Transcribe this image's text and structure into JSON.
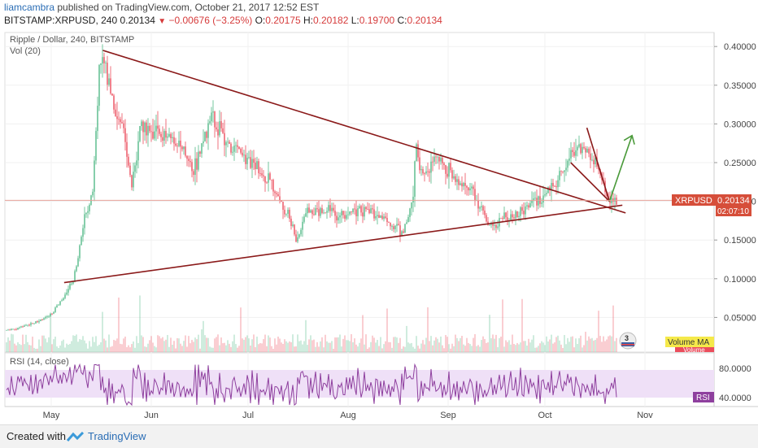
{
  "header": {
    "publisher": "liamcambra",
    "published_text": "published on TradingView.com, October 21, 2017 12:52 EST",
    "symbol_line": "BITSTAMP:XRPUSD, 240",
    "price": "0.20134",
    "change": "−0.00676 (−3.25%)",
    "o_label": "O:",
    "o": "0.20175",
    "h_label": "H:",
    "h": "0.20182",
    "l_label": "L:",
    "l": "0.19700",
    "c_label": "C:",
    "c": "0.20134"
  },
  "chart": {
    "title": "Ripple / Dollar, 240, BITSTAMP",
    "vol_label": "Vol (20)",
    "rsi_label": "RSI (14, close)",
    "price_tag": "XRPUSD",
    "price_tag_value": "0.20134",
    "countdown": "02:07:10",
    "volume_ma_label": "Volume MA",
    "volume_label": "Volume",
    "rsi_tag": "RSI",
    "badge_number": "3",
    "colors": {
      "up": "#53b987",
      "down": "#eb4d5c",
      "trend": "#8b1a1a",
      "arrow": "#4a9a3a",
      "rsi_band": "#efe0f7",
      "rsi_line": "#8e3f9e",
      "tag": "#d64e3a"
    }
  },
  "chart_data": {
    "type": "candlestick",
    "symbol": "XRPUSD",
    "y_ticks": [
      "0.40000",
      "0.35000",
      "0.30000",
      "0.25000",
      "0.20000",
      "0.15000",
      "0.10000",
      "0.05000"
    ],
    "ylim": [
      0.0,
      0.42
    ],
    "x_ticks": [
      "May",
      "Jun",
      "Jul",
      "Aug",
      "Sep",
      "Oct",
      "Nov"
    ],
    "rsi_ticks": [
      "80.0000",
      "40.0000"
    ],
    "price_path": [
      [
        "2017-04-10",
        0.03
      ],
      [
        "2017-04-20",
        0.035
      ],
      [
        "2017-04-30",
        0.05
      ],
      [
        "2017-05-05",
        0.075
      ],
      [
        "2017-05-08",
        0.1
      ],
      [
        "2017-05-11",
        0.17
      ],
      [
        "2017-05-14",
        0.22
      ],
      [
        "2017-05-16",
        0.38
      ],
      [
        "2017-05-17",
        0.39
      ],
      [
        "2017-05-20",
        0.33
      ],
      [
        "2017-05-24",
        0.28
      ],
      [
        "2017-05-26",
        0.22
      ],
      [
        "2017-05-29",
        0.3
      ],
      [
        "2017-06-03",
        0.29
      ],
      [
        "2017-06-08",
        0.28
      ],
      [
        "2017-06-14",
        0.24
      ],
      [
        "2017-06-20",
        0.31
      ],
      [
        "2017-06-25",
        0.27
      ],
      [
        "2017-06-30",
        0.26
      ],
      [
        "2017-07-05",
        0.24
      ],
      [
        "2017-07-10",
        0.21
      ],
      [
        "2017-07-14",
        0.18
      ],
      [
        "2017-07-16",
        0.145
      ],
      [
        "2017-07-19",
        0.19
      ],
      [
        "2017-07-24",
        0.19
      ],
      [
        "2017-07-30",
        0.18
      ],
      [
        "2017-08-05",
        0.19
      ],
      [
        "2017-08-10",
        0.185
      ],
      [
        "2017-08-15",
        0.17
      ],
      [
        "2017-08-18",
        0.16
      ],
      [
        "2017-08-21",
        0.2
      ],
      [
        "2017-08-22",
        0.28
      ],
      [
        "2017-08-24",
        0.23
      ],
      [
        "2017-08-28",
        0.26
      ],
      [
        "2017-09-01",
        0.24
      ],
      [
        "2017-09-05",
        0.22
      ],
      [
        "2017-09-09",
        0.21
      ],
      [
        "2017-09-14",
        0.165
      ],
      [
        "2017-09-18",
        0.18
      ],
      [
        "2017-09-22",
        0.18
      ],
      [
        "2017-09-27",
        0.2
      ],
      [
        "2017-10-01",
        0.205
      ],
      [
        "2017-10-05",
        0.23
      ],
      [
        "2017-10-09",
        0.26
      ],
      [
        "2017-10-12",
        0.27
      ],
      [
        "2017-10-15",
        0.26
      ],
      [
        "2017-10-17",
        0.25
      ],
      [
        "2017-10-19",
        0.22
      ],
      [
        "2017-10-21",
        0.20134
      ]
    ],
    "trendlines": [
      {
        "from": [
          "2017-05-17",
          0.395
        ],
        "to": [
          "2017-10-26",
          0.185
        ]
      },
      {
        "from": [
          "2017-05-05",
          0.095
        ],
        "to": [
          "2017-10-25",
          0.195
        ]
      },
      {
        "from": [
          "2017-10-14",
          0.295
        ],
        "to": [
          "2017-10-21",
          0.2
        ]
      },
      {
        "from": [
          "2017-10-09",
          0.25
        ],
        "to": [
          "2017-10-21",
          0.2
        ]
      }
    ],
    "arrow": {
      "from": [
        "2017-10-21",
        0.2
      ],
      "to": [
        "2017-10-28",
        0.285
      ]
    }
  }
}
